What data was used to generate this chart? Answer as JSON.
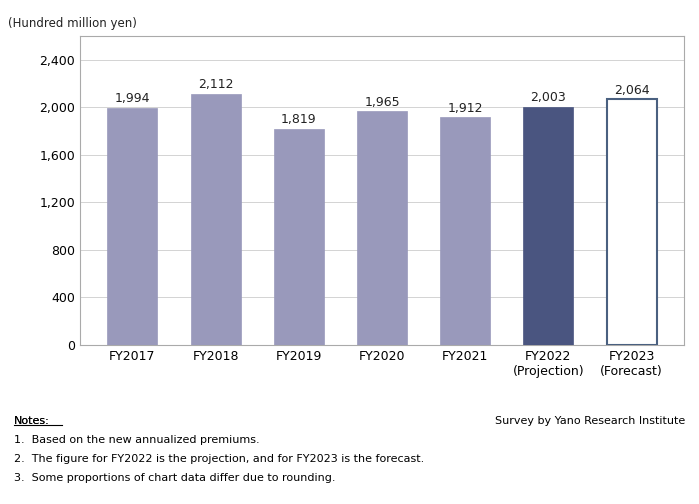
{
  "categories": [
    "FY2017",
    "FY2018",
    "FY2019",
    "FY2020",
    "FY2021",
    "FY2022",
    "FY2023"
  ],
  "sublabels": [
    "",
    "",
    "",
    "",
    "",
    "(Projection)",
    "(Forecast)"
  ],
  "values": [
    1994,
    2112,
    1819,
    1965,
    1912,
    2003,
    2064
  ],
  "bar_colors": [
    "#9999bb",
    "#9999bb",
    "#9999bb",
    "#9999bb",
    "#9999bb",
    "#4a5580",
    "#ffffff"
  ],
  "bar_edgecolors": [
    "#9999bb",
    "#9999bb",
    "#9999bb",
    "#9999bb",
    "#9999bb",
    "#4a5580",
    "#4a6080"
  ],
  "bar_linewidths": [
    0.5,
    0.5,
    0.5,
    0.5,
    0.5,
    0.5,
    1.5
  ],
  "ylabel": "(Hundred million yen)",
  "ylim": [
    0,
    2600
  ],
  "yticks": [
    0,
    400,
    800,
    1200,
    1600,
    2000,
    2400
  ],
  "note_title": "Notes:",
  "notes": [
    "1.  Based on the new annualized premiums.",
    "2.  The figure for FY2022 is the projection, and for FY2023 is the forecast.",
    "3.  Some proportions of chart data differ due to rounding."
  ],
  "survey_text": "Survey by Yano Research Institute",
  "value_label_color": "#222222",
  "background_color": "#ffffff",
  "plot_bg_color": "#ffffff",
  "figsize": [
    6.99,
    5.04
  ],
  "dpi": 100
}
